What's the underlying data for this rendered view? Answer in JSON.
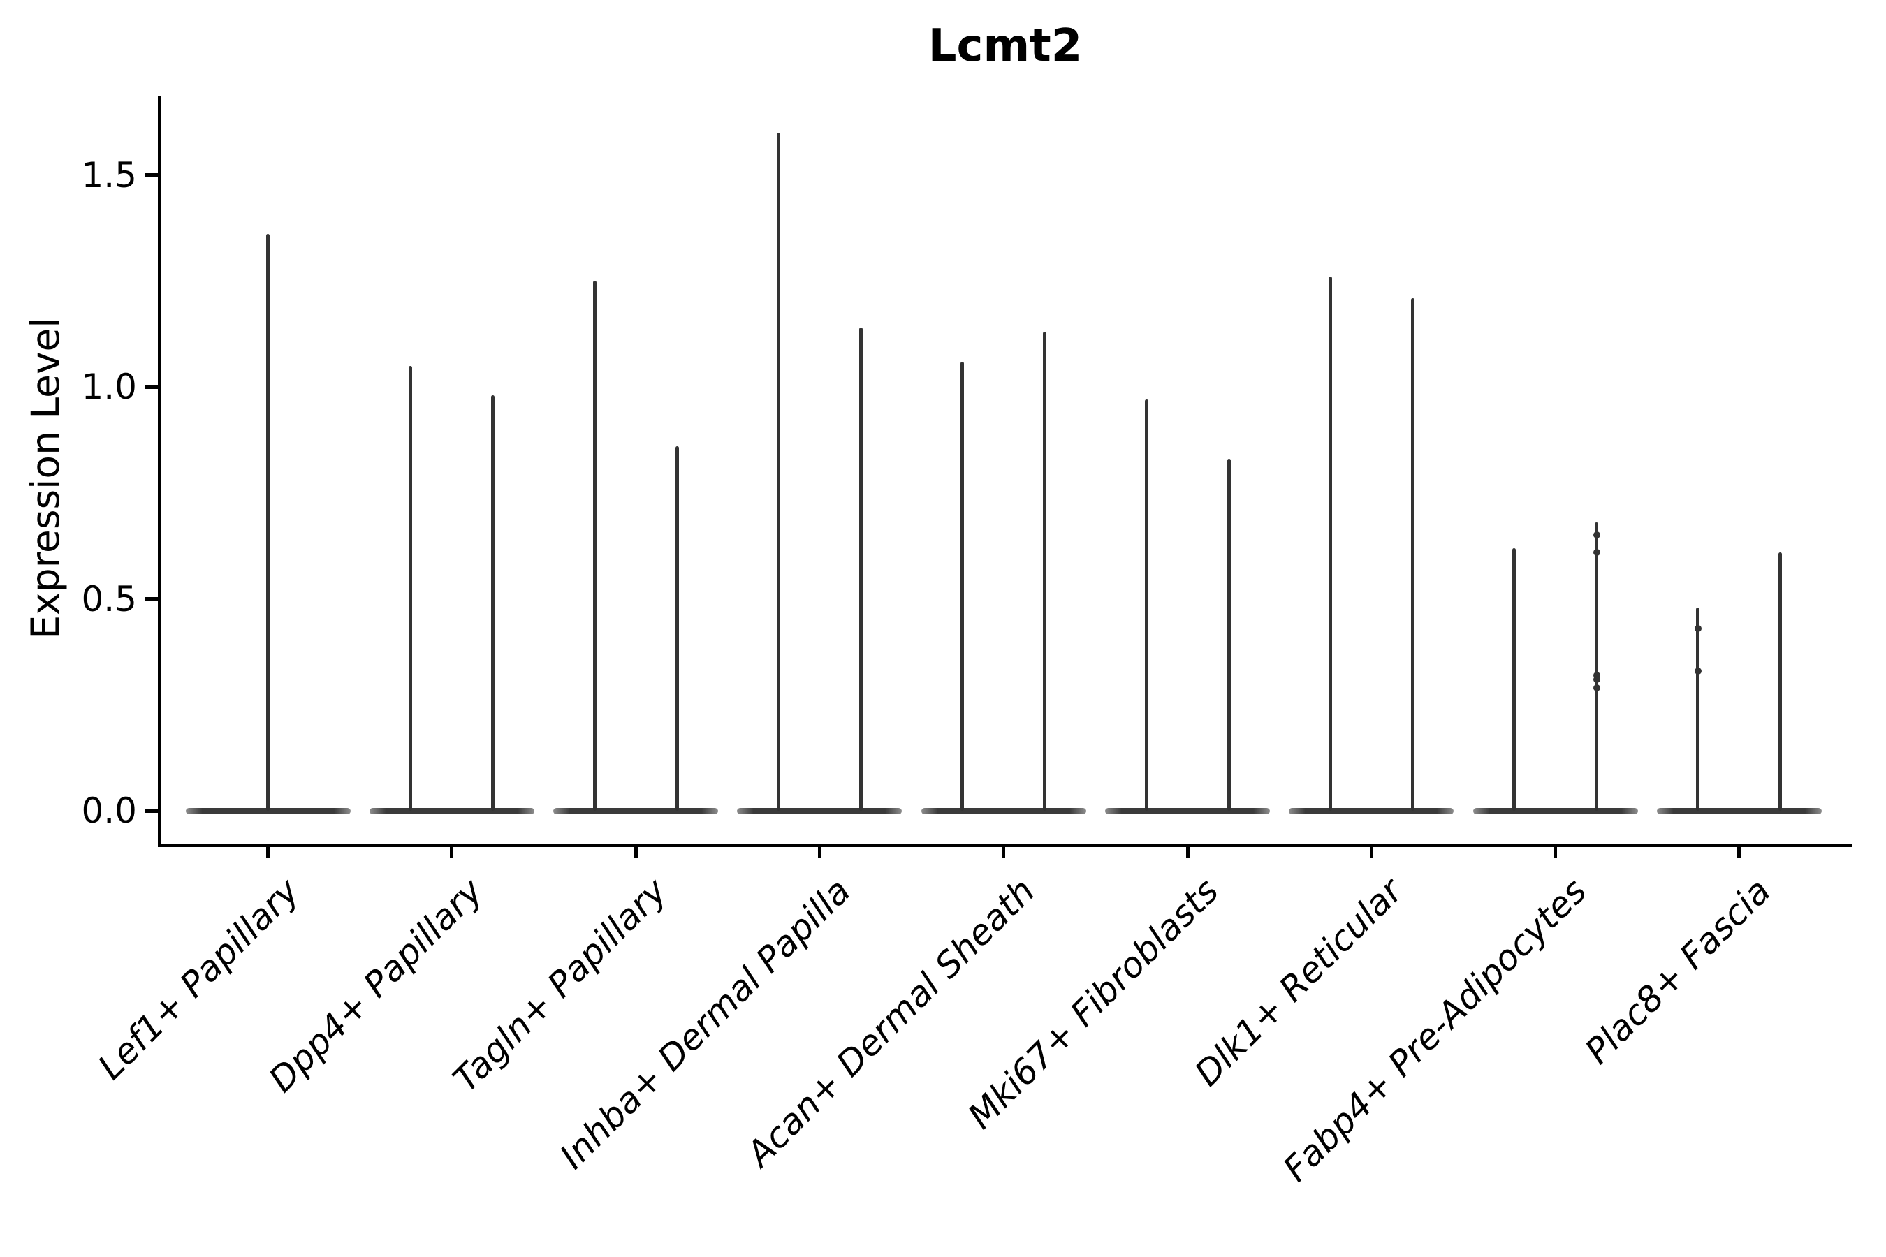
{
  "chart_data": {
    "type": "violin",
    "title": "Lcmt2",
    "ylabel": "Expression Level",
    "xlabel": "",
    "grid": false,
    "legend": null,
    "background_color": "#ffffff",
    "axis_color": "#000000",
    "violin_color": "#333333",
    "ylim": [
      -0.08,
      1.68
    ],
    "y_ticks": [
      0.0,
      0.5,
      1.0,
      1.5
    ],
    "y_tick_labels": [
      "0.0",
      "0.5",
      "1.0",
      "1.5"
    ],
    "categories": [
      "Lef1+ Papillary",
      "Dpp4+ Papillary",
      "Tagln+ Papillary",
      "Inhba+ Dermal Papilla",
      "Acan+ Dermal Sheath",
      "Mki67+ Fibroblasts",
      "Dlk1+ Reticular",
      "Fabp4+ Pre-Adipocytes",
      "Plac8+ Fascia"
    ],
    "description": "Violin plot of Lcmt2 expression; most cells at 0 giving flat wide bases with thin density spikes up to the max expression. Two dodged violins per category except a single centered violin for Lef1+ Papillary.",
    "violins": [
      {
        "category_index": 0,
        "position": "center",
        "max_expression": 1.36,
        "points": []
      },
      {
        "category_index": 1,
        "position": "left",
        "max_expression": 1.05,
        "points": []
      },
      {
        "category_index": 1,
        "position": "right",
        "max_expression": 0.98,
        "points": []
      },
      {
        "category_index": 2,
        "position": "left",
        "max_expression": 1.25,
        "points": []
      },
      {
        "category_index": 2,
        "position": "right",
        "max_expression": 0.86,
        "points": []
      },
      {
        "category_index": 3,
        "position": "left",
        "max_expression": 1.6,
        "points": []
      },
      {
        "category_index": 3,
        "position": "right",
        "max_expression": 1.14,
        "points": []
      },
      {
        "category_index": 4,
        "position": "left",
        "max_expression": 1.06,
        "points": []
      },
      {
        "category_index": 4,
        "position": "right",
        "max_expression": 1.13,
        "points": []
      },
      {
        "category_index": 5,
        "position": "left",
        "max_expression": 0.97,
        "points": []
      },
      {
        "category_index": 5,
        "position": "right",
        "max_expression": 0.83,
        "points": []
      },
      {
        "category_index": 6,
        "position": "left",
        "max_expression": 1.26,
        "points": []
      },
      {
        "category_index": 6,
        "position": "right",
        "max_expression": 1.21,
        "points": []
      },
      {
        "category_index": 7,
        "position": "left",
        "max_expression": 0.62,
        "points": []
      },
      {
        "category_index": 7,
        "position": "right",
        "max_expression": 0.68,
        "points": [
          0.65,
          0.61,
          0.32,
          0.31,
          0.29
        ]
      },
      {
        "category_index": 8,
        "position": "left",
        "max_expression": 0.48,
        "points": [
          0.43,
          0.33
        ]
      },
      {
        "category_index": 8,
        "position": "right",
        "max_expression": 0.61,
        "points": []
      }
    ]
  }
}
